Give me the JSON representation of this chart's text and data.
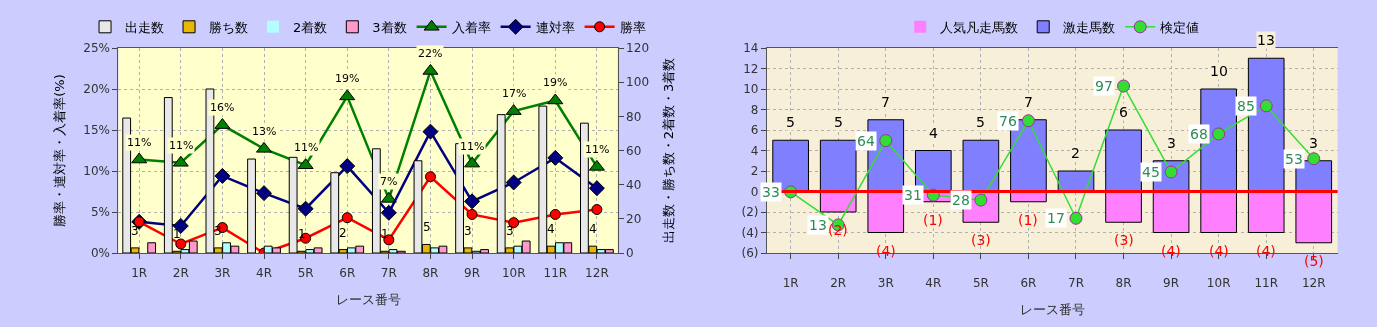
{
  "chart_data": [
    {
      "type": "bar",
      "categories": [
        "1R",
        "2R",
        "3R",
        "4R",
        "5R",
        "6R",
        "7R",
        "8R",
        "9R",
        "10R",
        "11R",
        "12R"
      ],
      "xlabel": "レース番号",
      "ylabel": "勝率・連対率・入着率(%)",
      "y2label": "出走数・勝ち数・2着数・3着数",
      "ylim": [
        0,
        25
      ],
      "yticks": [
        {
          "value": 0,
          "label": "0%"
        },
        {
          "value": 5,
          "label": "5%"
        },
        {
          "value": 10,
          "label": "10%"
        },
        {
          "value": 15,
          "label": "15%"
        },
        {
          "value": 20,
          "label": "20%"
        },
        {
          "value": 25,
          "label": "25%"
        }
      ],
      "y2lim": [
        0,
        120
      ],
      "y2ticks": [
        0,
        20,
        40,
        60,
        80,
        100,
        120
      ],
      "grid": true,
      "legend": "top",
      "series": [
        {
          "name": "出走数",
          "type": "bar",
          "axis": "y2",
          "color": "#e8e8e8",
          "values": [
            79,
            91,
            96,
            55,
            56,
            47,
            61,
            54,
            64,
            81,
            86,
            76
          ]
        },
        {
          "name": "勝ち数",
          "type": "bar",
          "axis": "y2",
          "color": "#e6b800",
          "values": [
            3,
            1,
            3,
            0,
            1,
            2,
            1,
            5,
            3,
            3,
            4,
            4
          ],
          "value_labels": [
            "3",
            "1",
            "3",
            null,
            "1",
            "2",
            "1",
            "5",
            "3",
            "3",
            "4",
            "4"
          ]
        },
        {
          "name": "2着数",
          "type": "bar",
          "axis": "y2",
          "color": "#b3ffff",
          "values": [
            0,
            2,
            6,
            4,
            2,
            3,
            2,
            3,
            1,
            4,
            6,
            2
          ]
        },
        {
          "name": "3着数",
          "type": "bar",
          "axis": "y2",
          "color": "#ff99cc",
          "values": [
            6,
            7,
            4,
            3,
            3,
            4,
            1,
            4,
            2,
            7,
            6,
            2
          ]
        },
        {
          "name": "入着率",
          "type": "line",
          "marker": "triangle",
          "color": "#008000",
          "values": [
            11.4,
            11.0,
            15.6,
            12.7,
            10.7,
            19.1,
            6.6,
            22.2,
            10.9,
            17.3,
            18.6,
            10.5
          ],
          "value_labels": [
            "11%",
            "11%",
            "16%",
            "13%",
            "11%",
            "19%",
            "7%",
            "22%",
            "11%",
            "17%",
            "19%",
            "11%"
          ]
        },
        {
          "name": "連対率",
          "type": "line",
          "marker": "diamond",
          "color": "#000080",
          "values": [
            3.8,
            3.3,
            9.4,
            7.3,
            5.4,
            10.6,
            4.9,
            14.8,
            6.3,
            8.6,
            11.6,
            7.9
          ]
        },
        {
          "name": "勝率",
          "type": "line",
          "marker": "circle",
          "color": "#ff0000",
          "values": [
            3.8,
            1.1,
            3.1,
            0,
            1.8,
            4.3,
            1.6,
            9.3,
            4.7,
            3.7,
            4.7,
            5.3
          ]
        }
      ]
    },
    {
      "type": "bar",
      "categories": [
        "1R",
        "2R",
        "3R",
        "4R",
        "5R",
        "6R",
        "7R",
        "8R",
        "9R",
        "10R",
        "11R",
        "12R"
      ],
      "xlabel": "レース番号",
      "ylim": [
        -6,
        14
      ],
      "yticks": [
        {
          "value": -6,
          "label": "(6)"
        },
        {
          "value": -4,
          "label": "(4)"
        },
        {
          "value": -2,
          "label": "(2)"
        },
        0,
        2,
        4,
        6,
        8,
        10,
        12,
        14
      ],
      "y2lim": [
        -4,
        120
      ],
      "grid": true,
      "legend": "top",
      "stacked": true,
      "ref_lines": [
        {
          "axis": "y",
          "value": 0,
          "color": "#ff0000"
        }
      ],
      "series": [
        {
          "name": "人気凡走馬数",
          "type": "bar",
          "color": "#ff80ff",
          "values": [
            0,
            -2,
            -4,
            -1,
            -3,
            -1,
            0,
            -3,
            -4,
            -4,
            -4,
            -5
          ],
          "value_labels": [
            null,
            "(2)",
            "(4)",
            "(1)",
            "(3)",
            "(1)",
            null,
            "(3)",
            "(4)",
            "(4)",
            "(4)",
            "(5)"
          ]
        },
        {
          "name": "激走馬数",
          "type": "bar",
          "color": "#8080ff",
          "values": [
            5,
            5,
            7,
            4,
            5,
            7,
            2,
            6,
            3,
            10,
            13,
            3
          ],
          "value_labels": [
            "5",
            "5",
            "7",
            "4",
            "5",
            "7",
            "2",
            "6",
            "3",
            "10",
            "13",
            "3"
          ]
        },
        {
          "name": "検定値",
          "type": "line",
          "axis": "y2",
          "marker": "circle",
          "color": "#33dd33",
          "values": [
            33,
            13,
            64,
            31,
            28,
            76,
            17,
            97,
            45,
            68,
            85,
            53
          ],
          "value_labels": [
            "33",
            "13",
            "64",
            "31",
            "28",
            "76",
            "17",
            "97",
            "45",
            "68",
            "85",
            "53"
          ]
        }
      ]
    }
  ]
}
